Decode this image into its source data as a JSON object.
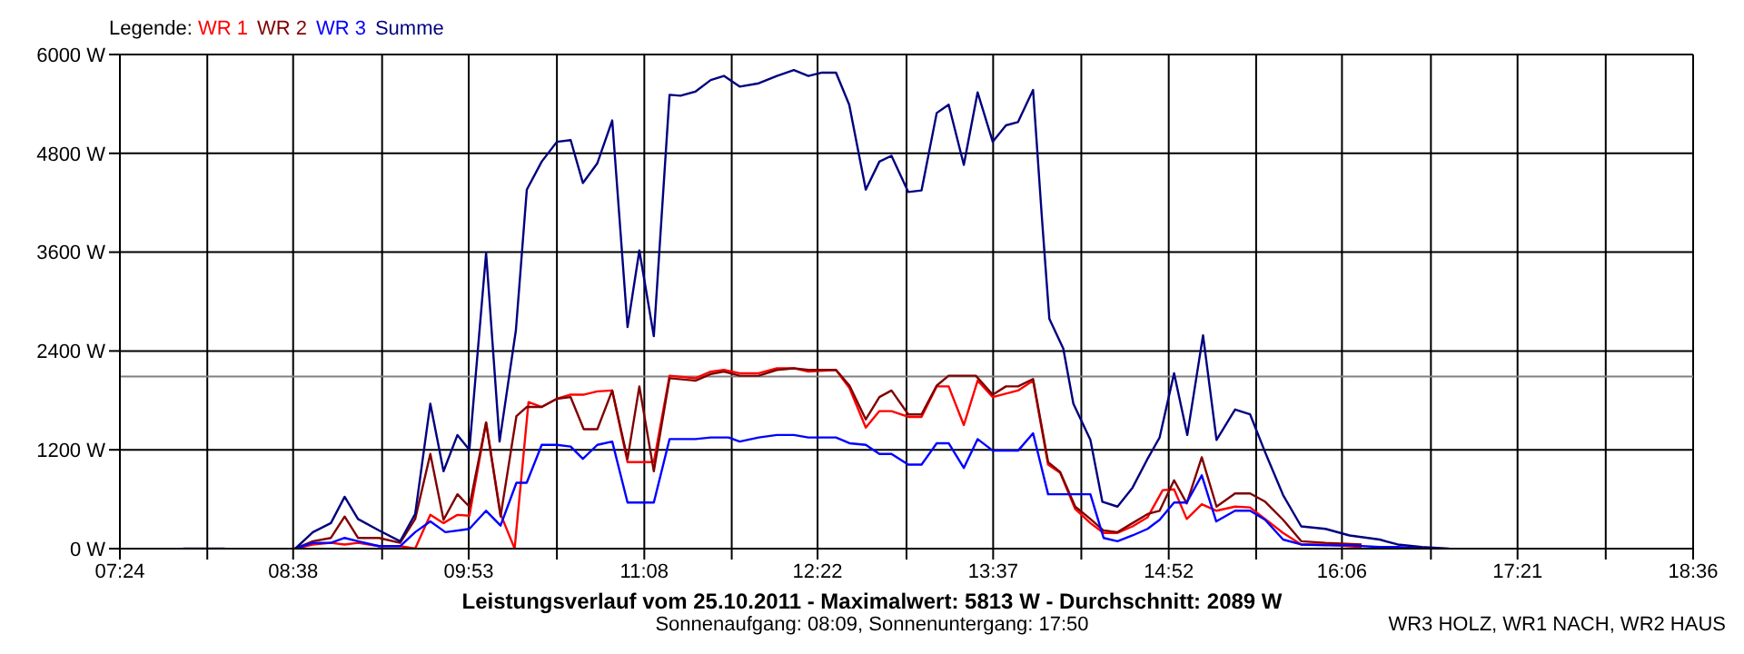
{
  "chart_data": {
    "type": "line",
    "title": "Leistungsverlauf vom 25.10.2011 - Maximalwert: 5813 W - Durchschnitt: 2089 W",
    "subtitle": "Sonnenaufgang: 08:09, Sonnenuntergang: 17:50",
    "legend_title": "Legende:",
    "legend": "top left",
    "grid": true,
    "marker": "none",
    "line_style": "solid",
    "annotations": [
      "WR3 HOLZ, WR1 NACH, WR2 HAUS"
    ],
    "xlim": [
      7.4,
      18.6
    ],
    "xticks": [
      {
        "value": 7.4,
        "label": "07:24"
      },
      {
        "value": 8.0222,
        "label": null
      },
      {
        "value": 8.6333,
        "label": "08:38"
      },
      {
        "value": 9.2667,
        "label": null
      },
      {
        "value": 9.8833,
        "label": "09:53"
      },
      {
        "value": 10.5111,
        "label": null
      },
      {
        "value": 11.1333,
        "label": "11:08"
      },
      {
        "value": 11.7556,
        "label": null
      },
      {
        "value": 12.3667,
        "label": "12:22"
      },
      {
        "value": 13.0,
        "label": null
      },
      {
        "value": 13.6167,
        "label": "13:37"
      },
      {
        "value": 14.2444,
        "label": null
      },
      {
        "value": 14.8667,
        "label": "14:52"
      },
      {
        "value": 15.4889,
        "label": null
      },
      {
        "value": 16.1,
        "label": "16:06"
      },
      {
        "value": 16.7333,
        "label": null
      },
      {
        "value": 17.35,
        "label": "17:21"
      },
      {
        "value": 17.9778,
        "label": null
      },
      {
        "value": 18.6,
        "label": "18:36"
      }
    ],
    "ylim": [
      0,
      6000
    ],
    "yticks": [
      {
        "value": 0,
        "label": "0 W"
      },
      {
        "value": 1200,
        "label": "1200 W"
      },
      {
        "value": 2400,
        "label": "2400 W"
      },
      {
        "value": 3600,
        "label": "3600 W"
      },
      {
        "value": 4800,
        "label": "4800 W"
      },
      {
        "value": 6000,
        "label": "6000 W"
      }
    ],
    "ref_lines": [
      {
        "axis": "y",
        "value": 2089,
        "color": "#808080"
      }
    ],
    "series": [
      {
        "name": "WR 1",
        "color": "#ff0000",
        "x": [
          8.645,
          8.774,
          8.902,
          9.0,
          9.095,
          9.245,
          9.395,
          9.502,
          9.61,
          9.704,
          9.803,
          9.888,
          10.007,
          10.11,
          10.21,
          10.309,
          10.403,
          10.511,
          10.609,
          10.705,
          10.799,
          10.905,
          11.014,
          11.201,
          11.313,
          11.497,
          11.606,
          11.7,
          11.812,
          11.948,
          12.077,
          12.198,
          12.301,
          12.498,
          12.594,
          12.71,
          12.807,
          12.893,
          13.013,
          13.107,
          13.215,
          13.3,
          13.408,
          13.506,
          13.614,
          13.794,
          13.901,
          14.008,
          14.094,
          14.201,
          14.309,
          14.403,
          14.502,
          14.609,
          14.716,
          14.824,
          14.905,
          14.995,
          15.102,
          15.207,
          15.339,
          15.446,
          15.553,
          15.681,
          15.81,
          15.983,
          16.24
        ],
        "values": [
          0,
          50,
          70,
          50,
          70,
          30,
          30,
          0,
          410,
          310,
          410,
          400,
          1530,
          420,
          0,
          1780,
          1720,
          1820,
          1870,
          1870,
          1910,
          1920,
          1050,
          1050,
          2100,
          2070,
          2150,
          2170,
          2130,
          2130,
          2190,
          2190,
          2150,
          2170,
          1950,
          1470,
          1670,
          1670,
          1600,
          1600,
          1970,
          1970,
          1500,
          2040,
          1840,
          1920,
          2040,
          1020,
          920,
          480,
          310,
          190,
          190,
          270,
          380,
          710,
          720,
          360,
          540,
          460,
          510,
          500,
          360,
          190,
          50,
          50,
          20
        ]
      },
      {
        "name": "WR 2",
        "color": "#800000",
        "x": [
          8.645,
          8.774,
          8.902,
          9.0,
          9.095,
          9.245,
          9.395,
          9.502,
          9.61,
          9.704,
          9.803,
          9.888,
          10.007,
          10.11,
          10.223,
          10.296,
          10.403,
          10.511,
          10.609,
          10.702,
          10.799,
          10.905,
          11.014,
          11.098,
          11.201,
          11.313,
          11.497,
          11.606,
          11.7,
          11.812,
          11.948,
          12.077,
          12.198,
          12.301,
          12.498,
          12.594,
          12.71,
          12.807,
          12.893,
          13.013,
          13.107,
          13.215,
          13.3,
          13.493,
          13.614,
          13.708,
          13.794,
          13.901,
          14.008,
          14.094,
          14.201,
          14.309,
          14.403,
          14.502,
          14.609,
          14.716,
          14.802,
          14.905,
          14.995,
          15.102,
          15.207,
          15.339,
          15.446,
          15.553,
          15.681,
          15.81,
          15.983,
          16.24
        ],
        "values": [
          0,
          90,
          130,
          390,
          130,
          130,
          70,
          360,
          1150,
          350,
          660,
          510,
          1530,
          390,
          1610,
          1720,
          1720,
          1820,
          1840,
          1450,
          1450,
          1920,
          1090,
          1970,
          940,
          2070,
          2040,
          2120,
          2150,
          2100,
          2100,
          2170,
          2190,
          2170,
          2170,
          1980,
          1570,
          1840,
          1920,
          1630,
          1630,
          1980,
          2100,
          2100,
          1870,
          1970,
          1970,
          2060,
          1050,
          930,
          510,
          360,
          220,
          200,
          310,
          420,
          460,
          830,
          550,
          1110,
          510,
          670,
          670,
          570,
          350,
          90,
          70,
          50
        ]
      },
      {
        "name": "WR 3",
        "color": "#0000ff",
        "x": [
          8.645,
          8.774,
          8.902,
          9.0,
          9.095,
          9.245,
          9.395,
          9.502,
          9.61,
          9.717,
          9.888,
          10.007,
          10.11,
          10.223,
          10.296,
          10.403,
          10.511,
          10.609,
          10.696,
          10.799,
          10.905,
          11.014,
          11.201,
          11.313,
          11.497,
          11.606,
          11.734,
          11.812,
          11.948,
          12.077,
          12.198,
          12.301,
          12.498,
          12.594,
          12.71,
          12.807,
          12.893,
          13.013,
          13.107,
          13.215,
          13.3,
          13.408,
          13.506,
          13.614,
          13.794,
          13.901,
          14.008,
          14.309,
          14.403,
          14.502,
          14.609,
          14.716,
          14.802,
          14.905,
          14.995,
          15.102,
          15.205,
          15.339,
          15.446,
          15.553,
          15.681,
          15.81,
          15.983,
          16.154,
          16.369,
          16.497,
          16.669
        ],
        "values": [
          0,
          70,
          70,
          130,
          90,
          30,
          30,
          200,
          330,
          200,
          240,
          460,
          280,
          800,
          800,
          1260,
          1260,
          1240,
          1090,
          1260,
          1300,
          560,
          560,
          1330,
          1330,
          1350,
          1350,
          1300,
          1350,
          1380,
          1380,
          1350,
          1350,
          1280,
          1260,
          1150,
          1150,
          1020,
          1020,
          1280,
          1280,
          980,
          1330,
          1190,
          1190,
          1400,
          660,
          660,
          130,
          90,
          160,
          240,
          350,
          560,
          560,
          890,
          330,
          460,
          460,
          350,
          110,
          50,
          40,
          40,
          20,
          20,
          0
        ]
      },
      {
        "name": "Summe",
        "color": "#000080",
        "x": [
          7.851,
          8.147,
          8.4,
          8.649,
          8.774,
          8.902,
          9.0,
          9.095,
          9.245,
          9.395,
          9.502,
          9.61,
          9.704,
          9.803,
          9.888,
          10.007,
          10.103,
          10.219,
          10.297,
          10.403,
          10.511,
          10.609,
          10.696,
          10.799,
          10.905,
          11.014,
          11.098,
          11.201,
          11.313,
          11.391,
          11.498,
          11.606,
          11.7,
          11.812,
          11.948,
          12.077,
          12.198,
          12.301,
          12.399,
          12.498,
          12.592,
          12.71,
          12.807,
          12.893,
          13.013,
          13.107,
          13.215,
          13.3,
          13.408,
          13.506,
          13.614,
          13.708,
          13.794,
          13.901,
          13.965,
          14.017,
          14.116,
          14.188,
          14.309,
          14.394,
          14.502,
          14.609,
          14.716,
          14.802,
          14.905,
          14.999,
          15.111,
          15.207,
          15.339,
          15.446,
          15.553,
          15.681,
          15.81,
          15.983,
          16.154,
          16.369,
          16.497,
          16.669,
          16.862
        ],
        "values": [
          0,
          0,
          null,
          0,
          200,
          310,
          630,
          360,
          220,
          90,
          420,
          1760,
          940,
          1380,
          1200,
          3590,
          1300,
          2650,
          4360,
          4700,
          4940,
          4960,
          4440,
          4680,
          5200,
          2690,
          3620,
          2580,
          5510,
          5500,
          5550,
          5690,
          5740,
          5610,
          5650,
          5740,
          5810,
          5740,
          5780,
          5780,
          5390,
          4360,
          4700,
          4770,
          4330,
          4350,
          5290,
          5390,
          4660,
          5540,
          4940,
          5140,
          5180,
          5570,
          3990,
          2790,
          2430,
          1760,
          1320,
          570,
          510,
          740,
          1090,
          1350,
          2130,
          1380,
          2590,
          1320,
          1690,
          1630,
          1170,
          650,
          270,
          240,
          160,
          110,
          50,
          20,
          0
        ]
      }
    ]
  }
}
